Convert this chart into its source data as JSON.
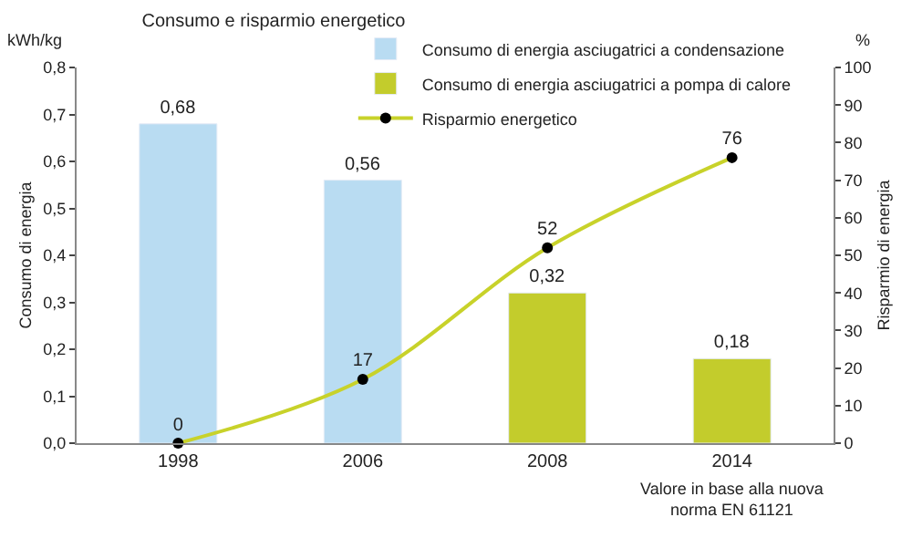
{
  "chart_data": {
    "type": "bar",
    "title": "Consumo e risparmio energetico",
    "ylabel": "Consumo di energia",
    "y2label": "Risparmio di energia",
    "annotations": [
      "kWh/kg",
      "%",
      "Valore in base alla nuova\nnorma EN 61121"
    ],
    "categories": [
      "1998",
      "2006",
      "2008",
      "2014"
    ],
    "series": [
      {
        "name": "Consumo di energia asciugatrici a condensazione",
        "color": "#b9dcf2",
        "values": [
          0.68,
          0.56,
          null,
          null
        ],
        "value_labels": [
          "0,68",
          "0,56",
          null,
          null
        ]
      },
      {
        "name": "Consumo di energia asciugatrici a pompa di calore",
        "color": "#c3cc2c",
        "values": [
          null,
          null,
          0.32,
          0.18
        ],
        "value_labels": [
          null,
          null,
          "0,32",
          "0,18"
        ]
      },
      {
        "name": "Risparmio energetico",
        "type": "line",
        "axis": "y2",
        "color": "#c8d22a",
        "marker": "circle",
        "values": [
          0,
          17,
          52,
          76
        ],
        "value_labels": [
          "0",
          "17",
          "52",
          "76"
        ]
      }
    ],
    "legend": "top",
    "ylim": [
      0,
      0.8
    ],
    "yticks": [
      {
        "value": 0,
        "label": "0,0"
      },
      {
        "value": 0.1,
        "label": "0,1"
      },
      {
        "value": 0.2,
        "label": "0,2"
      },
      {
        "value": 0.3,
        "label": "0,3"
      },
      {
        "value": 0.4,
        "label": "0,4"
      },
      {
        "value": 0.5,
        "label": "0,5"
      },
      {
        "value": 0.6,
        "label": "0,6"
      },
      {
        "value": 0.7,
        "label": "0,7"
      },
      {
        "value": 0.8,
        "label": "0,8"
      }
    ],
    "y2lim": [
      0,
      100
    ],
    "y2ticks": [
      0,
      10,
      20,
      30,
      40,
      50,
      60,
      70,
      80,
      90,
      100
    ]
  }
}
